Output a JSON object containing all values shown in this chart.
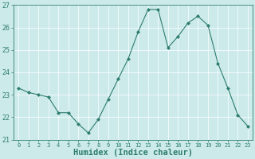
{
  "x": [
    0,
    1,
    2,
    3,
    4,
    5,
    6,
    7,
    8,
    9,
    10,
    11,
    12,
    13,
    14,
    15,
    16,
    17,
    18,
    19,
    20,
    21,
    22,
    23
  ],
  "y": [
    23.3,
    23.1,
    23.0,
    22.9,
    22.2,
    22.2,
    21.7,
    21.3,
    21.9,
    22.8,
    23.7,
    24.6,
    25.8,
    26.8,
    26.8,
    25.1,
    25.6,
    26.2,
    26.5,
    26.1,
    24.4,
    23.3,
    22.1,
    21.6
  ],
  "line_color": "#2e7d6e",
  "marker": "D",
  "marker_size": 2.0,
  "bg_color": "#cceaea",
  "grid_color": "#e8f8f8",
  "grid_line_color": "#ffffff",
  "tick_color": "#2e7d6e",
  "xlabel": "Humidex (Indice chaleur)",
  "xlabel_fontsize": 7.5,
  "ylim": [
    21,
    27
  ],
  "xlim": [
    -0.5,
    23.5
  ],
  "yticks": [
    21,
    22,
    23,
    24,
    25,
    26,
    27
  ],
  "xticks": [
    0,
    1,
    2,
    3,
    4,
    5,
    6,
    7,
    8,
    9,
    10,
    11,
    12,
    13,
    14,
    15,
    16,
    17,
    18,
    19,
    20,
    21,
    22,
    23
  ]
}
